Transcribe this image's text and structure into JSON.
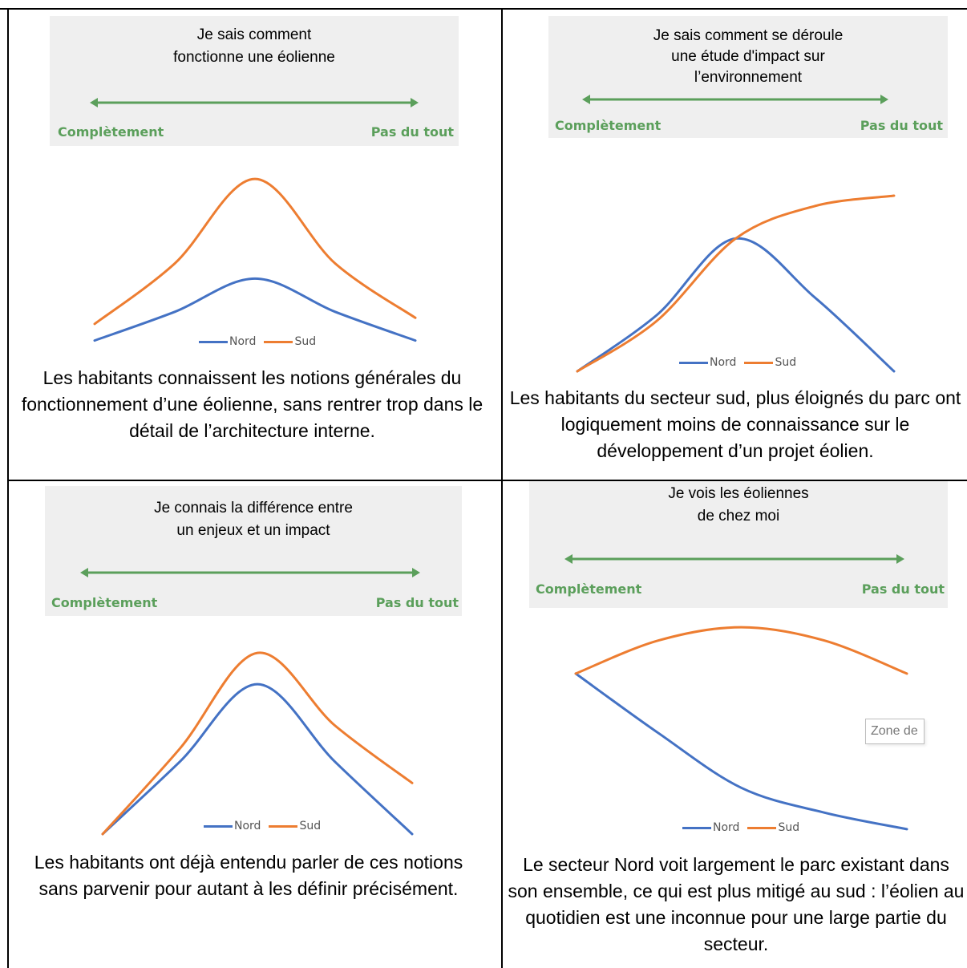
{
  "colors": {
    "nord": "#4472c4",
    "sud": "#ed7d31",
    "scale": "#5b9f5b",
    "panel": "#efefef"
  },
  "scale_labels": {
    "left": "Complètement",
    "right": "Pas du tout"
  },
  "tooltip": "Zone de",
  "quadrants": [
    {
      "question": "Je sais comment\nfonctionne une éolienne",
      "caption": "Les habitants connaissent les notions générales du fonctionnement d’une éolienne, sans rentrer trop dans le détail de l’architecture interne."
    },
    {
      "question": "Je sais comment se déroule\nune étude d'impact sur\nl’environnement",
      "caption": "Les habitants du secteur sud, plus éloignés du parc ont logiquement moins de connaissance sur le développement d’un projet éolien."
    },
    {
      "question": "Je connais la différence entre\nun enjeux et un impact",
      "caption": "Les habitants ont déjà entendu parler de ces notions sans parvenir pour autant à les définir précisément."
    },
    {
      "question": "Je vois les éoliennes\nde chez moi",
      "caption": "Le secteur Nord voit largement le parc existant dans son ensemble, ce qui est plus mitigé au sud : l’éolien au quotidien est une inconnue pour une large partie du secteur."
    }
  ],
  "chart_data": [
    {
      "type": "line",
      "categories": [
        "Complètement",
        "",
        "",
        "",
        "Pas du tout"
      ],
      "series": [
        {
          "name": "Nord",
          "values": [
            0.5,
            2.4,
            4.6,
            2.4,
            0.5
          ]
        },
        {
          "name": "Sud",
          "values": [
            1.6,
            5.6,
            11.2,
            5.6,
            2.0
          ]
        }
      ]
    },
    {
      "type": "line",
      "categories": [
        "Complètement",
        "",
        "",
        "",
        "Pas du tout"
      ],
      "series": [
        {
          "name": "Nord",
          "values": [
            0,
            3.8,
            9.0,
            5.0,
            0
          ]
        },
        {
          "name": "Sud",
          "values": [
            0,
            3.4,
            9.0,
            11.2,
            11.9
          ]
        }
      ]
    },
    {
      "type": "line",
      "categories": [
        "Complètement",
        "",
        "",
        "",
        "Pas du tout"
      ],
      "series": [
        {
          "name": "Nord",
          "values": [
            0,
            4.4,
            9.1,
            4.4,
            0
          ]
        },
        {
          "name": "Sud",
          "values": [
            0,
            5.2,
            11.0,
            6.6,
            3.1
          ]
        }
      ]
    },
    {
      "type": "line",
      "categories": [
        "Complètement",
        "",
        "",
        "",
        "Pas du tout"
      ],
      "series": [
        {
          "name": "Nord",
          "values": [
            9.6,
            6.0,
            2.7,
            1.2,
            0.2
          ]
        },
        {
          "name": "Sud",
          "values": [
            9.6,
            11.6,
            12.4,
            11.6,
            9.6
          ]
        }
      ]
    }
  ]
}
